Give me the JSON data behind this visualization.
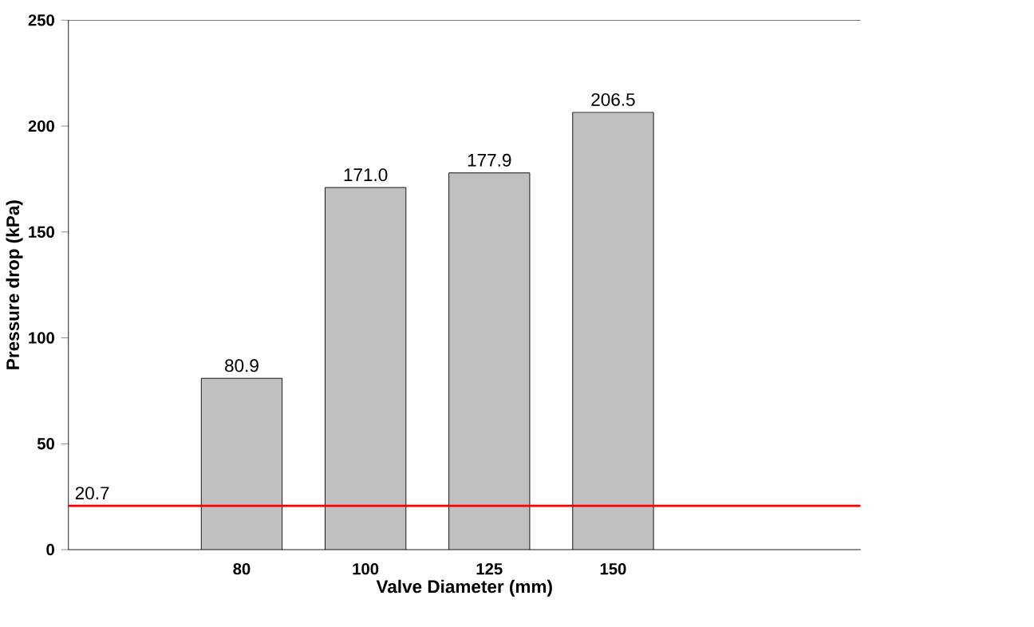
{
  "chart_data": {
    "type": "bar",
    "xlabel": "Valve Diameter (mm)",
    "ylabel": "Pressure drop (kPa)",
    "categories": [
      "80",
      "100",
      "125",
      "150"
    ],
    "values": [
      80.9,
      171.0,
      177.9,
      206.5
    ],
    "value_labels": [
      "80.9",
      "171.0",
      "177.9",
      "206.5"
    ],
    "color": "#c0c0c0",
    "ylim": [
      0,
      250
    ],
    "yticks": [
      0,
      50,
      100,
      150,
      200,
      250
    ],
    "ref_lines": [
      {
        "axis": "y",
        "value": 20.7,
        "label": "20.7",
        "color": "#ff0000",
        "line_style": "solid"
      }
    ]
  }
}
